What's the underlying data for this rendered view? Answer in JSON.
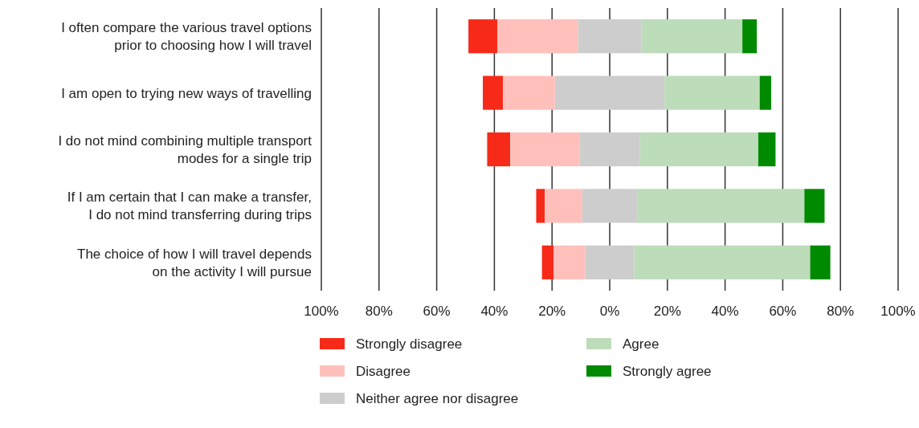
{
  "chart_data": {
    "type": "bar",
    "orientation": "horizontal",
    "categories": [
      "I often compare the various travel options\nprior to choosing how I will travel",
      "I am open to trying new ways of travelling",
      "I do not mind combining multiple transport\nmodes for a single trip",
      "If I am certain that I can make a transfer,\nI do not mind transferring during trips",
      "The choice of how I will travel depends\non the activity I will pursue"
    ],
    "series": [
      {
        "name": "Strongly disagree",
        "color": "#f72a1a",
        "base": [
          -49,
          -44,
          -42.5,
          -25.5,
          -23.5
        ],
        "values": [
          10,
          7,
          8,
          3,
          4
        ]
      },
      {
        "name": "Disagree",
        "color": "#ffc0bc",
        "base": [
          -39,
          -37,
          -34.5,
          -22.5,
          -19.5
        ],
        "values": [
          28,
          18,
          24,
          13,
          11
        ]
      },
      {
        "name": "Neither agree nor disagree",
        "color": "#cdcdcd",
        "base": [
          -11,
          -19,
          -10.5,
          -9.5,
          -8.5
        ],
        "values": [
          22,
          38,
          21,
          19,
          17
        ]
      },
      {
        "name": "Agree",
        "color": "#bddcba",
        "base": [
          11,
          19,
          10.5,
          9.5,
          8.5
        ],
        "values": [
          35,
          33,
          41,
          58,
          61
        ]
      },
      {
        "name": "Strongly agree",
        "color": "#008a00",
        "base": [
          46,
          52,
          51.5,
          67.5,
          69.5
        ],
        "values": [
          5,
          4,
          6,
          7,
          7
        ]
      }
    ],
    "xlim": [
      -100,
      100
    ],
    "xticks": [
      {
        "value": -100,
        "label": "100%"
      },
      {
        "value": -80,
        "label": "80%"
      },
      {
        "value": -60,
        "label": "60%"
      },
      {
        "value": -40,
        "label": "40%"
      },
      {
        "value": -20,
        "label": "20%"
      },
      {
        "value": 0,
        "label": "0%"
      },
      {
        "value": 20,
        "label": "20%"
      },
      {
        "value": 40,
        "label": "40%"
      },
      {
        "value": 60,
        "label": "60%"
      },
      {
        "value": 80,
        "label": "80%"
      },
      {
        "value": 100,
        "label": "100%"
      }
    ],
    "grid": "x",
    "legend": "bottom"
  }
}
